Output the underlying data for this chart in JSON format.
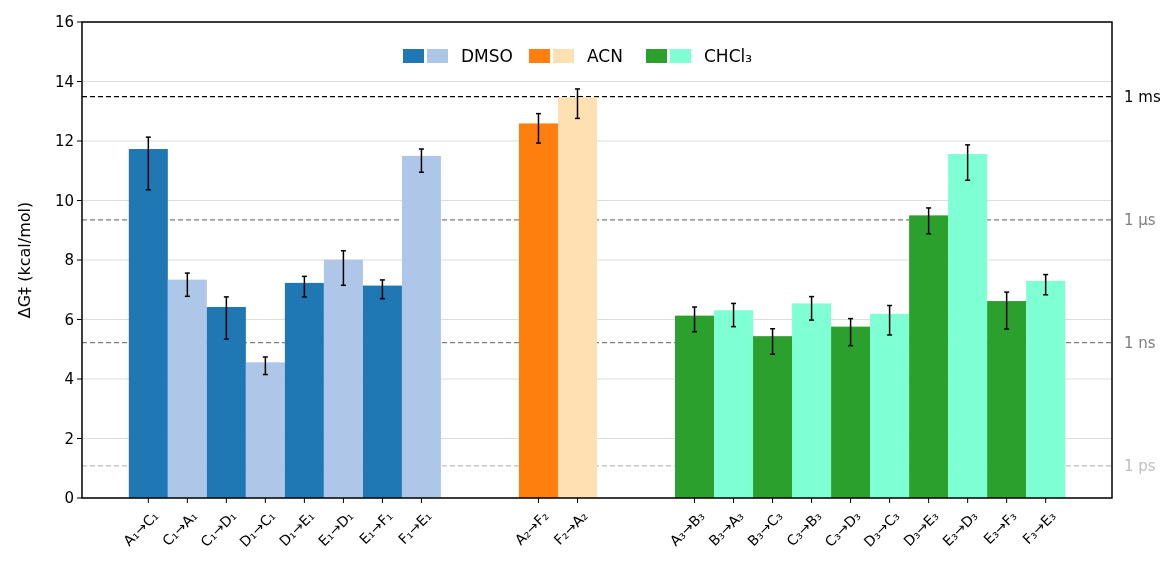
{
  "chart_data": {
    "type": "bar",
    "ylabel": "ΔG‡ (kcal/mol)",
    "categories": [
      "A₁→C₁",
      "C₁→A₁",
      "C₁→D₁",
      "D₁→C₁",
      "D₁→E₁",
      "E₁→D₁",
      "E₁→F₁",
      "F₁→E₁",
      null,
      null,
      "A₂→F₂",
      "F₂→A₂",
      null,
      null,
      "A₃→B₃",
      "B₃→A₃",
      "B₃→C₃",
      "C₃→B₃",
      "C₃→D₃",
      "D₃→C₃",
      "D₃→E₃",
      "E₃→D₃",
      "E₃→F₃",
      "F₃→E₃"
    ],
    "series": [
      {
        "name": "DMSO",
        "values": [
          11.73,
          7.34,
          6.42,
          4.56,
          7.23,
          8.01,
          7.14,
          11.5,
          null,
          null,
          null,
          null,
          null,
          null,
          null,
          null,
          null,
          null,
          null,
          null,
          null,
          null,
          null,
          null
        ],
        "colors": [
          "#1f77b4",
          "#aec7e8",
          "#1f77b4",
          "#aec7e8",
          "#1f77b4",
          "#aec7e8",
          "#1f77b4",
          "#aec7e8",
          null,
          null,
          null,
          null,
          null,
          null,
          null,
          null,
          null,
          null,
          null,
          null,
          null,
          null,
          null,
          null
        ],
        "errors": [
          [
            10.36,
            12.13
          ],
          [
            6.78,
            7.56
          ],
          [
            5.34,
            6.76
          ],
          [
            4.15,
            4.74
          ],
          [
            6.76,
            7.45
          ],
          [
            7.15,
            8.31
          ],
          [
            6.7,
            7.33
          ],
          [
            10.95,
            11.73
          ],
          null,
          null,
          null,
          null,
          null,
          null,
          null,
          null,
          null,
          null,
          null,
          null,
          null,
          null,
          null,
          null
        ]
      },
      {
        "name": "ACN",
        "values": [
          null,
          null,
          null,
          null,
          null,
          null,
          null,
          null,
          null,
          null,
          12.59,
          13.47,
          null,
          null,
          null,
          null,
          null,
          null,
          null,
          null,
          null,
          null,
          null,
          null
        ],
        "colors": [
          null,
          null,
          null,
          null,
          null,
          null,
          null,
          null,
          null,
          null,
          "#ff7f0e",
          "#fee0b2",
          null,
          null,
          null,
          null,
          null,
          null,
          null,
          null,
          null,
          null,
          null,
          null
        ],
        "errors": [
          null,
          null,
          null,
          null,
          null,
          null,
          null,
          null,
          null,
          null,
          [
            11.93,
            12.92
          ],
          [
            12.76,
            13.75
          ],
          null,
          null,
          null,
          null,
          null,
          null,
          null,
          null,
          null,
          null,
          null,
          null
        ]
      },
      {
        "name": "CHCl₃",
        "values": [
          null,
          null,
          null,
          null,
          null,
          null,
          null,
          null,
          null,
          null,
          null,
          null,
          null,
          null,
          6.13,
          6.31,
          5.44,
          6.54,
          5.76,
          6.19,
          9.5,
          11.56,
          6.62,
          7.3
        ],
        "colors": [
          null,
          null,
          null,
          null,
          null,
          null,
          null,
          null,
          null,
          null,
          null,
          null,
          null,
          null,
          "#2ca02c",
          "#7fffd4",
          "#2ca02c",
          "#7fffd4",
          "#2ca02c",
          "#7fffd4",
          "#2ca02c",
          "#7fffd4",
          "#2ca02c",
          "#7fffd4"
        ],
        "errors": [
          null,
          null,
          null,
          null,
          null,
          null,
          null,
          null,
          null,
          null,
          null,
          null,
          null,
          null,
          [
            5.59,
            6.42
          ],
          [
            5.76,
            6.54
          ],
          [
            4.83,
            5.69
          ],
          [
            5.98,
            6.77
          ],
          [
            5.12,
            6.03
          ],
          [
            5.48,
            6.47
          ],
          [
            8.88,
            9.75
          ],
          [
            10.68,
            11.87
          ],
          [
            5.68,
            6.92
          ],
          [
            6.83,
            7.51
          ]
        ]
      }
    ],
    "ylim": [
      0,
      16
    ],
    "yticks": [
      0,
      2,
      4,
      6,
      8,
      10,
      12,
      14,
      16
    ],
    "grid": "y",
    "legend": "top",
    "ref_lines": [
      {
        "axis": "y",
        "value": 13.49,
        "label": "1 ms",
        "color": "#000000",
        "line_style": "dashed"
      },
      {
        "axis": "y",
        "value": 9.35,
        "label": "1 µs",
        "color": "#7f7f7f",
        "line_style": "dashed"
      },
      {
        "axis": "y",
        "value": 5.22,
        "label": "1 ns",
        "color": "#7f7f7f",
        "line_style": "dashed"
      },
      {
        "axis": "y",
        "value": 1.08,
        "label": "1 ps",
        "color": "#bfbfbf",
        "line_style": "dashed"
      }
    ]
  }
}
